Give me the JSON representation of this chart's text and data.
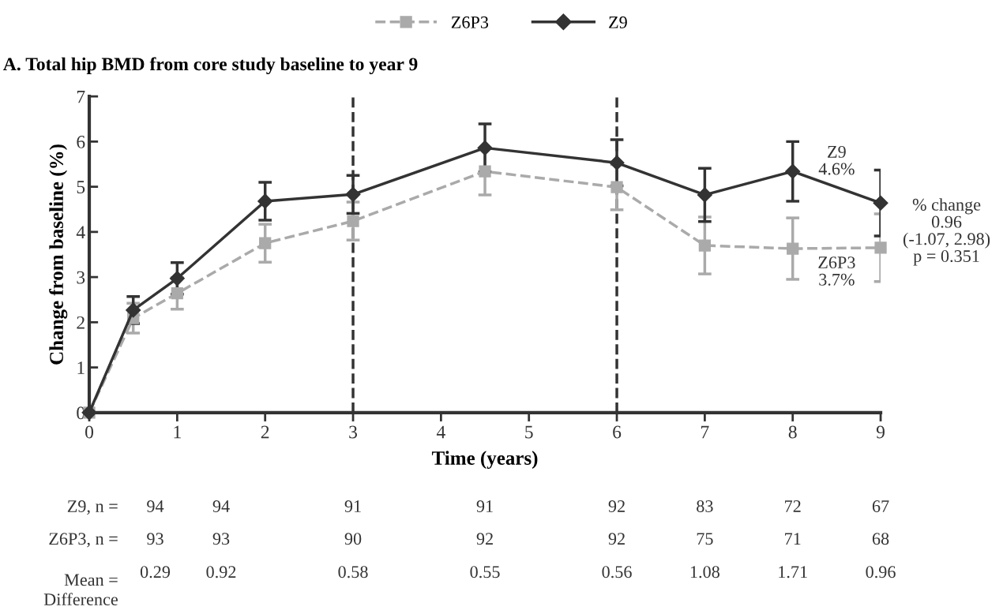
{
  "chart_data": {
    "type": "line",
    "title": "A. Total hip BMD from core study baseline to year 9",
    "xlabel": "Time (years)",
    "ylabel": "Change from baseline (%)",
    "x": [
      0,
      0.5,
      1,
      2,
      3,
      4.5,
      6,
      7,
      8,
      9
    ],
    "series": [
      {
        "name": "Z6P3",
        "color": "#aaaaaa",
        "marker": "square",
        "line_style": "dashed",
        "values": [
          0,
          2.09,
          2.64,
          3.75,
          4.24,
          5.34,
          4.99,
          3.7,
          3.63,
          3.65
        ],
        "errors": [
          null,
          0.33,
          0.35,
          0.42,
          0.42,
          0.52,
          0.5,
          0.63,
          0.68,
          0.75
        ]
      },
      {
        "name": "Z9",
        "color": "#333333",
        "marker": "diamond",
        "line_style": "solid",
        "values": [
          0,
          2.27,
          2.97,
          4.68,
          4.83,
          5.86,
          5.53,
          4.82,
          5.34,
          4.64
        ],
        "errors": [
          null,
          0.3,
          0.35,
          0.42,
          0.42,
          0.53,
          0.51,
          0.59,
          0.66,
          0.73
        ]
      }
    ],
    "xlim": [
      0,
      9
    ],
    "xticks": [
      0,
      1,
      2,
      3,
      4,
      5,
      6,
      7,
      8,
      9
    ],
    "ylim": [
      0,
      7
    ],
    "yticks": [
      0,
      1,
      2,
      3,
      4,
      5,
      6,
      7
    ],
    "ref_lines": [
      {
        "axis": "x",
        "value": 3,
        "color": "#333333",
        "line_style": "dashed"
      },
      {
        "axis": "x",
        "value": 6,
        "color": "#333333",
        "line_style": "dashed"
      }
    ],
    "grid": false,
    "legend": "top",
    "annotations": [
      "Z9\n4.6%",
      "Z6P3\n3.7%",
      "% change\n0.96\n(-1.07, 2.98)\np = 0.351",
      "Z9, n =",
      "94",
      "94",
      "91",
      "91",
      "92",
      "83",
      "72",
      "67",
      "Z6P3, n =",
      "93",
      "93",
      "90",
      "92",
      "92",
      "75",
      "71",
      "68",
      "Mean =\nDifference",
      "0.29",
      "0.92",
      "0.58",
      "0.55",
      "0.56",
      "1.08",
      "1.71",
      "0.96"
    ]
  }
}
